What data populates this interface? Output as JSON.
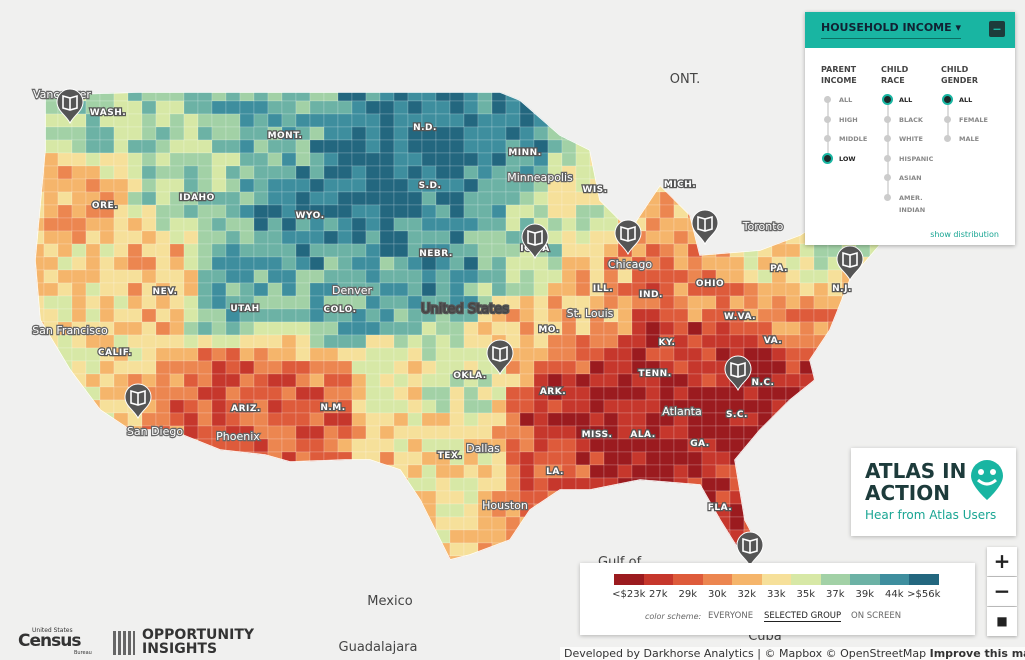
{
  "panel": {
    "title": "HOUSEHOLD INCOME",
    "groups": [
      {
        "heading": "PARENT INCOME",
        "options": [
          "ALL",
          "HIGH",
          "MIDDLE",
          "LOW"
        ],
        "selected": 3
      },
      {
        "heading": "CHILD RACE",
        "options": [
          "ALL",
          "BLACK",
          "WHITE",
          "HISPANIC",
          "ASIAN",
          "AMER. INDIAN"
        ],
        "selected": 0
      },
      {
        "heading": "CHILD GENDER",
        "options": [
          "ALL",
          "FEMALE",
          "MALE"
        ],
        "selected": 0
      }
    ],
    "link": "show distribution"
  },
  "promo": {
    "title": "ATLAS IN ACTION",
    "subtitle": "Hear from Atlas Users"
  },
  "legend": {
    "bins": [
      {
        "label": "<$23k",
        "color": "#9b1b1f"
      },
      {
        "label": "27k",
        "color": "#c6372c"
      },
      {
        "label": "29k",
        "color": "#de5b3b"
      },
      {
        "label": "30k",
        "color": "#ec8650"
      },
      {
        "label": "32k",
        "color": "#f5b56b"
      },
      {
        "label": "33k",
        "color": "#f6e09a"
      },
      {
        "label": "35k",
        "color": "#d7e8a6"
      },
      {
        "label": "37k",
        "color": "#a2d1a6"
      },
      {
        "label": "39k",
        "color": "#6cb2a5"
      },
      {
        "label": "44k",
        "color": "#3e8e9e"
      },
      {
        "label": ">$56k",
        "color": "#23677f"
      }
    ],
    "scheme_label": "color scheme:",
    "schemes": [
      "EVERYONE",
      "SELECTED GROUP",
      "ON SCREEN"
    ],
    "selected_scheme": 1
  },
  "map": {
    "state_labels": [
      "WASH.",
      "ORE.",
      "CALIF.",
      "NEV.",
      "IDAHO",
      "MONT.",
      "WYO.",
      "UTAH",
      "ARIZ.",
      "COLO.",
      "N.M.",
      "N.D.",
      "S.D.",
      "NEBR.",
      "OKLA.",
      "TEX.",
      "MINN.",
      "IOWA",
      "MO.",
      "ARK.",
      "LA.",
      "WIS.",
      "ILL.",
      "IND.",
      "OHIO",
      "MICH.",
      "KY.",
      "TENN.",
      "MISS.",
      "ALA.",
      "GA.",
      "FLA.",
      "S.C.",
      "N.C.",
      "VA.",
      "W.VA.",
      "PA.",
      "N.J."
    ],
    "city_labels": [
      "Vancouver",
      "San Francisco",
      "San Diego",
      "Phoenix",
      "Denver",
      "Dallas",
      "Houston",
      "Minneapolis",
      "Chicago",
      "St. Louis",
      "Atlanta",
      "Toronto"
    ],
    "place_labels": [
      "ONT.",
      "United States",
      "Mexico",
      "Gulf of",
      "Cuba",
      "Guadalajara"
    ]
  },
  "zoom": [
    "+",
    "−"
  ],
  "logos": {
    "census_top": "United States",
    "census": "Census",
    "census_bottom": "Bureau",
    "oi_top": "OPPORTUNITY",
    "oi_bottom": "INSIGHTS"
  },
  "footer": {
    "credit": "Developed by Darkhorse Analytics | © Mapbox © OpenStreetMap",
    "link": "Improve this map"
  }
}
